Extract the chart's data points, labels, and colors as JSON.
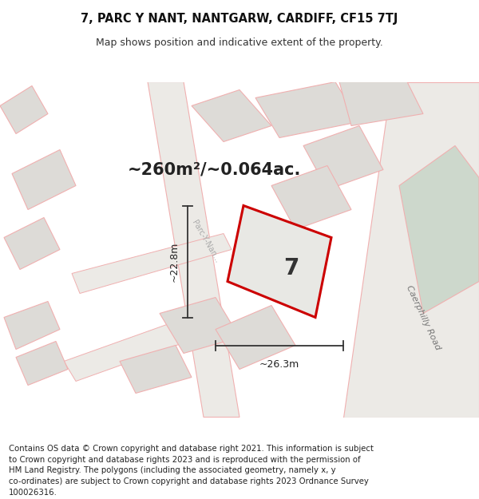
{
  "title_line1": "7, PARC Y NANT, NANTGARW, CARDIFF, CF15 7TJ",
  "title_line2": "Map shows position and indicative extent of the property.",
  "area_text": "~260m²/~0.064ac.",
  "plot_number": "7",
  "dim_width": "~26.3m",
  "dim_height": "~22.8m",
  "road_label": "Caerphilly Road",
  "street_label": "Parc-Y-Nan...",
  "footer_text": "Contains OS data © Crown copyright and database right 2021. This information is subject\nto Crown copyright and database rights 2023 and is reproduced with the permission of\nHM Land Registry. The polygons (including the associated geometry, namely x, y\nco-ordinates) are subject to Crown copyright and database rights 2023 Ordnance Survey\n100026316.",
  "bg_color": "#f2f0ed",
  "plot_fill": "#e8e8e4",
  "plot_edge_color": "#cc0000",
  "building_color": "#dddbd7",
  "road_fill": "#eceae6",
  "green_area_color": "#cdd8cc",
  "line_color_light": "#f0b0b0",
  "dim_line_color": "#333333",
  "text_color": "#222222",
  "label_color": "#888888",
  "road_text_color": "#777777",
  "title_fontsize": 10.5,
  "subtitle_fontsize": 9.0,
  "area_fontsize": 15,
  "plot_num_fontsize": 20,
  "dim_fontsize": 9,
  "footer_fontsize": 7.3,
  "road_label_fontsize": 8,
  "street_label_fontsize": 7
}
